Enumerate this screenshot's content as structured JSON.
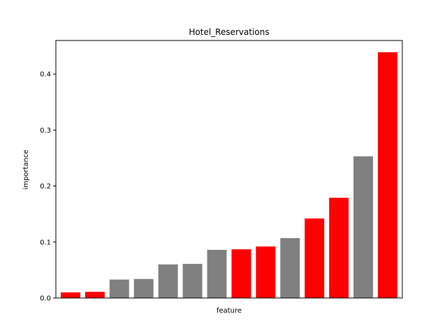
{
  "chart_data": {
    "type": "bar",
    "title": "Hotel_Reservations",
    "xlabel": "feature",
    "ylabel": "importance",
    "ylim": [
      0,
      0.46
    ],
    "yticks": [
      0.0,
      0.1,
      0.2,
      0.3,
      0.4
    ],
    "ytick_labels": [
      "0.0",
      "0.1",
      "0.2",
      "0.3",
      "0.4"
    ],
    "x_tick_labels_shown": false,
    "grid": false,
    "values": [
      0.01,
      0.011,
      0.033,
      0.034,
      0.06,
      0.061,
      0.086,
      0.087,
      0.092,
      0.107,
      0.142,
      0.179,
      0.253,
      0.439
    ],
    "bar_colors": [
      "#ff0000",
      "#ff0000",
      "#808080",
      "#808080",
      "#808080",
      "#808080",
      "#808080",
      "#ff0000",
      "#ff0000",
      "#808080",
      "#ff0000",
      "#ff0000",
      "#808080",
      "#ff0000"
    ]
  }
}
